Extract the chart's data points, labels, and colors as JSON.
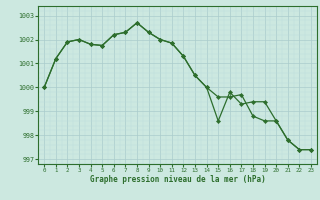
{
  "line1": [
    1000.0,
    1001.2,
    1001.9,
    1002.0,
    1001.8,
    1001.75,
    1002.2,
    1002.3,
    1002.7,
    1002.3,
    1002.0,
    1001.85,
    1001.3,
    1000.5,
    1000.0,
    999.6,
    999.6,
    999.7,
    998.8,
    998.6,
    998.6,
    997.8,
    997.4,
    997.4
  ],
  "line2": [
    1000.0,
    1001.2,
    1001.9,
    1002.0,
    1001.8,
    1001.75,
    1002.2,
    1002.3,
    1002.7,
    1002.3,
    1002.0,
    1001.85,
    1001.3,
    1000.5,
    1000.0,
    998.6,
    999.8,
    999.3,
    999.4,
    999.4,
    998.6,
    997.8,
    997.4,
    997.4
  ],
  "x": [
    0,
    1,
    2,
    3,
    4,
    5,
    6,
    7,
    8,
    9,
    10,
    11,
    12,
    13,
    14,
    15,
    16,
    17,
    18,
    19,
    20,
    21,
    22,
    23
  ],
  "ylim": [
    996.8,
    1003.3
  ],
  "yticks": [
    997,
    998,
    999,
    1000,
    1001,
    1002,
    1003
  ],
  "bg_color": "#cce8e0",
  "line_color": "#2d6e2d",
  "grid_major_color": "#aacccc",
  "grid_minor_color": "#bbdddd",
  "xlabel": "Graphe pression niveau de la mer (hPa)"
}
